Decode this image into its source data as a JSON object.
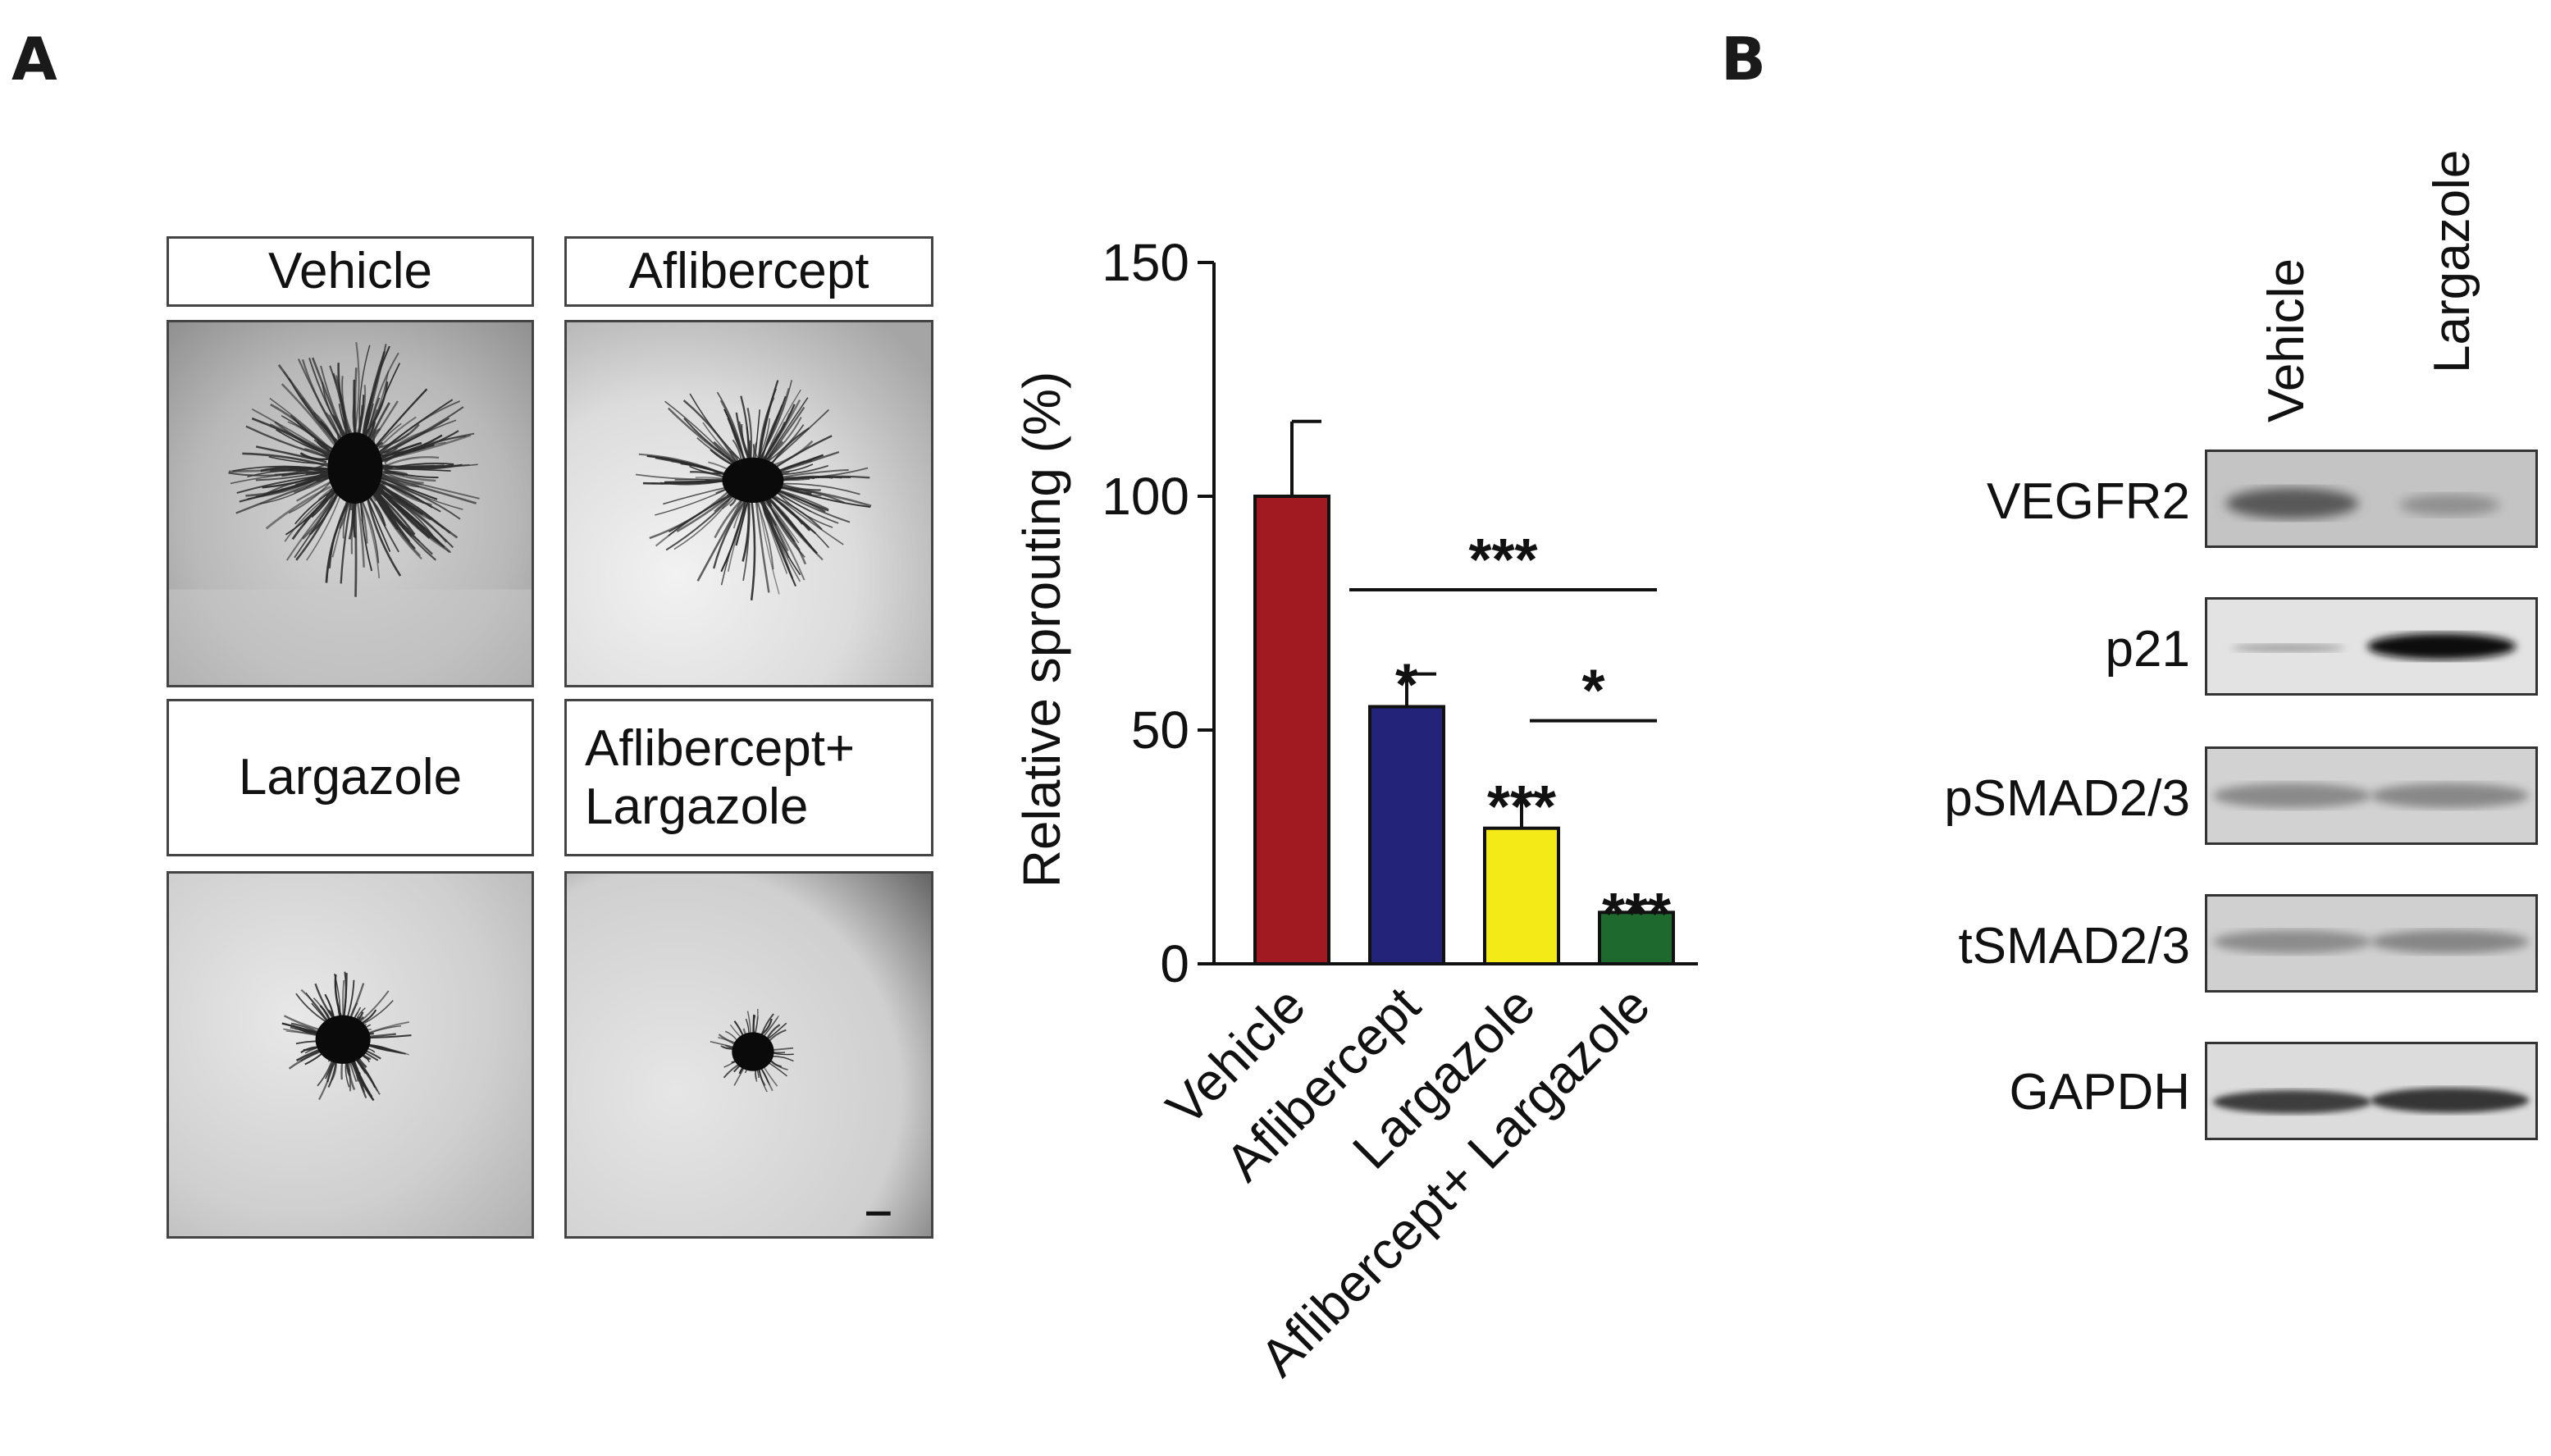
{
  "panels": {
    "a_letter": "A",
    "b_letter": "B"
  },
  "images": {
    "vehicle_label": "Vehicle",
    "aflibercept_label": "Aflibercept",
    "largazole_label": "Largazole",
    "combo_label_line1": "Aflibercept+",
    "combo_label_line2": "Largazole"
  },
  "chart_data": {
    "type": "bar",
    "title": "",
    "xlabel": "",
    "ylabel": "Relative sprouting (%)",
    "ylim": [
      0,
      150
    ],
    "yticks": [
      0,
      50,
      100,
      150
    ],
    "categories": [
      "Vehicle",
      "Aflibercept",
      "Largazole",
      "Aflibercept+ Largazole"
    ],
    "values": [
      100,
      55,
      29,
      11
    ],
    "errors": [
      16,
      7,
      7,
      2
    ],
    "colors": [
      "#a11a22",
      "#23237a",
      "#f3ea17",
      "#1e6a2e"
    ],
    "significance": [
      "",
      "*",
      "***",
      "***"
    ],
    "brackets": [
      {
        "from": 1,
        "to": 3,
        "label": "***"
      },
      {
        "from": 2,
        "to": 3,
        "label": "*"
      }
    ]
  },
  "blot": {
    "columns": [
      "Vehicle",
      "Largazole"
    ],
    "rows": [
      "VEGFR2",
      "p21",
      "pSMAD2/3",
      "tSMAD2/3",
      "GAPDH"
    ]
  }
}
